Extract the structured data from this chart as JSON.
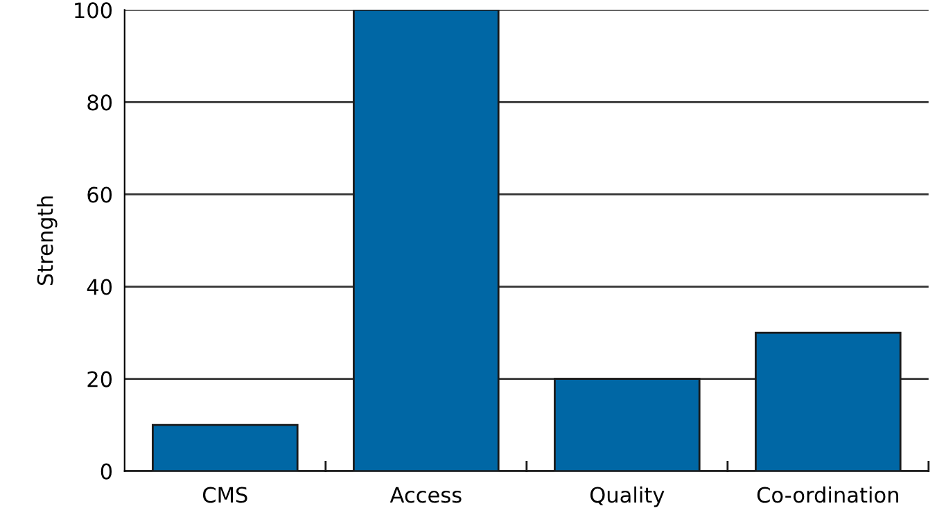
{
  "chart_data": {
    "type": "bar",
    "ylabel": "Strength",
    "categories": [
      "CMS",
      "Access",
      "Quality",
      "Co-ordination"
    ],
    "values": [
      10,
      100,
      20,
      30
    ],
    "color": "#0067a5",
    "ylim": [
      0,
      100
    ],
    "yticks": [
      0,
      20,
      40,
      60,
      80,
      100
    ],
    "grid": "y",
    "legend": false
  }
}
